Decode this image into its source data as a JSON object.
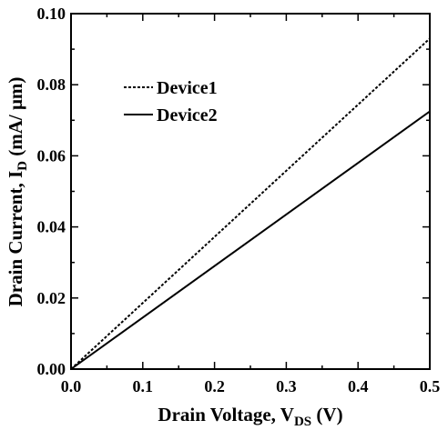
{
  "chart_data": {
    "type": "line",
    "xlabel": {
      "main": "Drain Voltage, V",
      "sub": "DS",
      "tail": " (V)"
    },
    "ylabel": {
      "main": "Drain Current,  I",
      "sub": "D",
      "tail": " (mA/ μm)"
    },
    "xlim": [
      0.0,
      0.5
    ],
    "ylim": [
      0.0,
      0.1
    ],
    "xticks": [
      "0.0",
      "0.1",
      "0.2",
      "0.3",
      "0.4",
      "0.5"
    ],
    "yticks": [
      "0.00",
      "0.02",
      "0.04",
      "0.06",
      "0.08",
      "0.10"
    ],
    "grid": false,
    "legend_position": "top-left",
    "series": [
      {
        "name": "Device1",
        "style": "dotted",
        "x": [
          0.0,
          0.5
        ],
        "y": [
          0.0,
          0.093
        ]
      },
      {
        "name": "Device2",
        "style": "solid",
        "x": [
          0.0,
          0.5
        ],
        "y": [
          0.0,
          0.0725
        ]
      }
    ]
  }
}
